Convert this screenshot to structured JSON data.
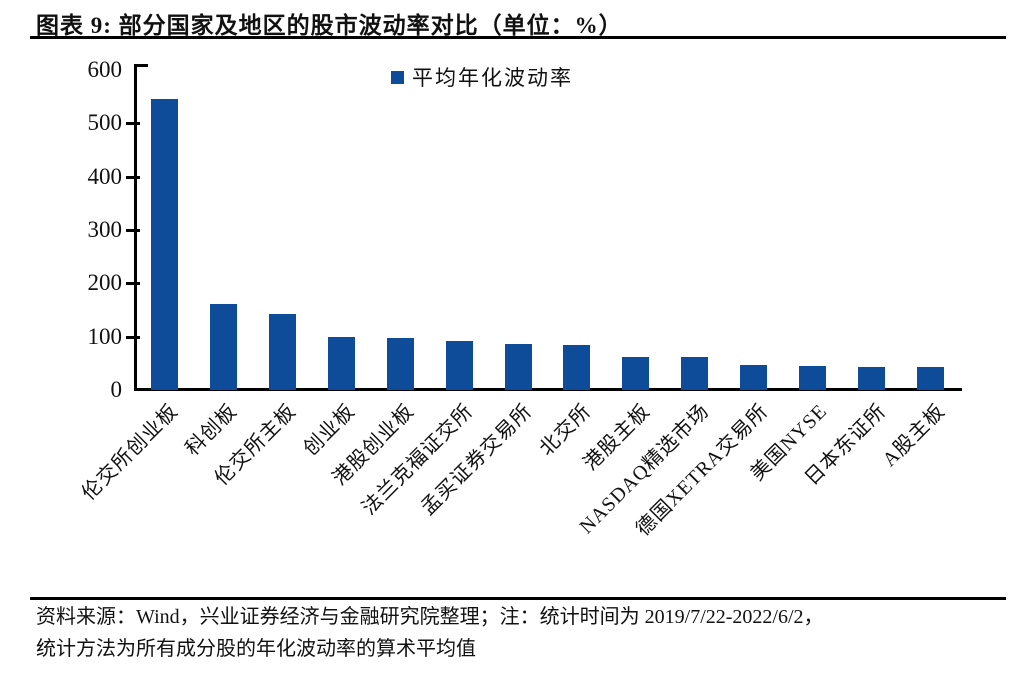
{
  "figure": {
    "title": "图表 9:  部分国家及地区的股市波动率对比（单位：%）",
    "source_note_line1": "资料来源：Wind，兴业证券经济与金融研究院整理；注：统计时间为 2019/7/22-2022/6/2，",
    "source_note_line2": "统计方法为所有成分股的年化波动率的算术平均值"
  },
  "chart_data": {
    "type": "bar",
    "title": "部分国家及地区的股市波动率对比",
    "unit": "%",
    "legend": [
      {
        "label": "平均年化波动率",
        "color": "#0E4B98"
      }
    ],
    "legend_position": "top-center",
    "categories": [
      "伦交所创业板",
      "科创板",
      "伦交所主板",
      "创业板",
      "港股创业板",
      "法兰克福证交所",
      "孟买证券交易所",
      "北交所",
      "港股主板",
      "NASDAQ精选市场",
      "德国XETRA交易所",
      "美国NYSE",
      "日本东证所",
      "A股主板"
    ],
    "values": [
      545,
      161,
      143,
      100,
      97,
      92,
      87,
      84,
      62,
      61,
      47,
      45,
      43,
      43
    ],
    "xlabel": "",
    "ylabel": "",
    "ylim": [
      0,
      600
    ],
    "yticks": [
      0,
      100,
      200,
      300,
      400,
      500,
      600
    ],
    "grid": false,
    "bar_color": "#0E4B98",
    "axis_color": "#000000"
  }
}
